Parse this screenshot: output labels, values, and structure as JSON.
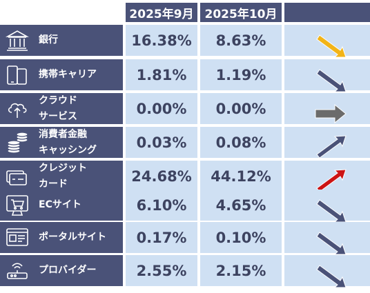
{
  "header": {
    "col1": "2025年9月",
    "col2": "2025年10月"
  },
  "rows": [
    {
      "label": [
        "銀行"
      ],
      "sep": "16.38%",
      "oct": "8.63%",
      "trend": "down",
      "color": "#f2b418",
      "icon": "bank-icon"
    },
    {
      "label": [
        "携帯キャリア"
      ],
      "sep": "1.81%",
      "oct": "1.19%",
      "trend": "down",
      "color": "#4a5278",
      "icon": "smartphone-icon"
    },
    {
      "label": [
        "クラウド",
        "サービス"
      ],
      "sep": "0.00%",
      "oct": "0.00%",
      "trend": "flat",
      "color": "#6b6b6b",
      "icon": "cloud-upload-icon"
    },
    {
      "label": [
        "消費者金融",
        "キャッシング"
      ],
      "sep": "0.03%",
      "oct": "0.08%",
      "trend": "up",
      "color": "#4a5278",
      "icon": "coins-icon"
    },
    {
      "label": [
        "クレジット",
        "カード"
      ],
      "sep": "24.68%",
      "oct": "44.12%",
      "trend": "up",
      "color": "#cc1414",
      "icon": "credit-card-icon"
    },
    {
      "label": [
        "ECサイト"
      ],
      "sep": "6.10%",
      "oct": "4.65%",
      "trend": "down",
      "color": "#4a5278",
      "icon": "shopping-cart-icon"
    },
    {
      "label": [
        "ポータルサイト"
      ],
      "sep": "0.17%",
      "oct": "0.10%",
      "trend": "down",
      "color": "#4a5278",
      "icon": "browser-window-icon"
    },
    {
      "label": [
        "プロバイダー"
      ],
      "sep": "2.55%",
      "oct": "2.15%",
      "trend": "down",
      "color": "#4a5278",
      "icon": "router-icon"
    }
  ]
}
